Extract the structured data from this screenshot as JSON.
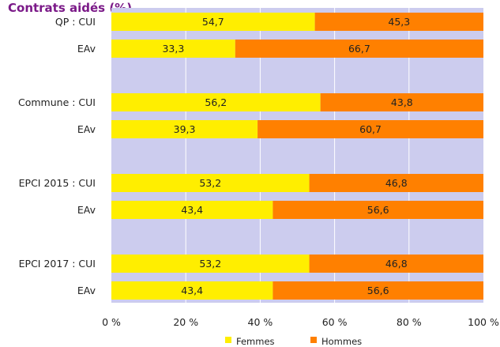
{
  "chart_data": {
    "type": "bar",
    "orientation": "horizontal",
    "stacked": true,
    "title": "Contrats aidés (%)",
    "groups": [
      "QP",
      "Commune",
      "EPCI 2015",
      "EPCI 2017"
    ],
    "categories": [
      "QP : CUI",
      "EAv",
      "Commune : CUI",
      "EAv",
      "EPCI 2015 : CUI",
      "EAv",
      "EPCI 2017 : CUI",
      "EAv"
    ],
    "series": [
      {
        "name": "Femmes",
        "color": "#ffee00",
        "values": [
          54.7,
          33.3,
          56.2,
          39.3,
          53.2,
          43.4,
          53.2,
          43.4
        ]
      },
      {
        "name": "Hommes",
        "color": "#ff8000",
        "values": [
          45.3,
          66.7,
          43.8,
          60.7,
          46.8,
          56.6,
          46.8,
          56.6
        ]
      }
    ],
    "value_labels": [
      [
        "54,7",
        "33,3",
        "56,2",
        "39,3",
        "53,2",
        "43,4",
        "53,2",
        "43,4"
      ],
      [
        "45,3",
        "66,7",
        "43,8",
        "60,7",
        "46,8",
        "56,6",
        "46,8",
        "56,6"
      ]
    ],
    "x_ticks": [
      "0 %",
      "20 %",
      "40 %",
      "60 %",
      "80 %",
      "100 %"
    ],
    "x_tick_values": [
      0,
      20,
      40,
      60,
      80,
      100
    ],
    "xlim": [
      0,
      100
    ],
    "grid": true,
    "background_color": "#ccccee",
    "legend_position": "bottom"
  }
}
